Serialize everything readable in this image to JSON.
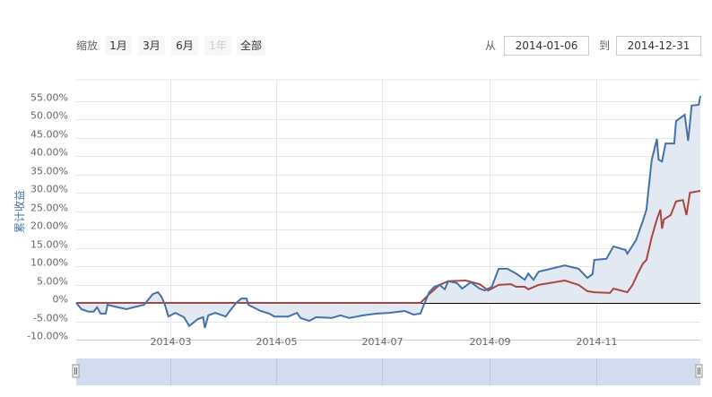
{
  "range_selector": {
    "zoom_label": "缩放",
    "buttons": [
      {
        "label": "1月",
        "disabled": false
      },
      {
        "label": "3月",
        "disabled": false
      },
      {
        "label": "6月",
        "disabled": false
      },
      {
        "label": "1年",
        "disabled": true
      },
      {
        "label": "全部",
        "disabled": false
      }
    ],
    "from_label": "从",
    "from_value": "2014-01-06",
    "to_label": "到",
    "to_value": "2014-12-31"
  },
  "chart_data": {
    "type": "area",
    "ylabel": "累计收益",
    "xlim": [
      "2014-01-06",
      "2014-12-31"
    ],
    "ylim": [
      -10,
      60
    ],
    "y_ticks": [
      -10,
      -5,
      0,
      5,
      10,
      15,
      20,
      25,
      30,
      35,
      40,
      45,
      50,
      55
    ],
    "y_tick_labels": [
      "-10.00%",
      "-5.00%",
      "0%",
      "5.00%",
      "10.00%",
      "15.00%",
      "20.00%",
      "25.00%",
      "30.00%",
      "35.00%",
      "40.00%",
      "45.00%",
      "50.00%",
      "55.00%"
    ],
    "x_ticks": [
      "2014-03-01",
      "2014-05-01",
      "2014-07-01",
      "2014-09-01",
      "2014-11-01"
    ],
    "x_tick_labels": [
      "2014-03",
      "2014-05",
      "2014-07",
      "2014-09",
      "2014-11"
    ],
    "grid": true,
    "legend": "none",
    "colors": {
      "series1": "#4572a7",
      "series2": "#aa4643",
      "area_fill": "#e3e9f2",
      "zero_line": "#000000",
      "navigator": "#d3dcee"
    },
    "series": [
      {
        "values": [
          [
            "2014-01-06",
            0
          ],
          [
            "2014-01-09",
            -1.7
          ],
          [
            "2014-01-13",
            -2.4
          ],
          [
            "2014-01-16",
            -2.4
          ],
          [
            "2014-01-18",
            -1.2
          ],
          [
            "2014-01-20",
            -2.9
          ],
          [
            "2014-01-23",
            -2.9
          ],
          [
            "2014-01-24",
            -0.5
          ],
          [
            "2014-01-30",
            -1.2
          ],
          [
            "2014-02-04",
            -1.7
          ],
          [
            "2014-02-08",
            -1.2
          ],
          [
            "2014-02-14",
            -0.5
          ],
          [
            "2014-02-17",
            1.2
          ],
          [
            "2014-02-19",
            2.4
          ],
          [
            "2014-02-22",
            2.9
          ],
          [
            "2014-02-24",
            1.7
          ],
          [
            "2014-02-26",
            -0.5
          ],
          [
            "2014-02-28",
            -3.7
          ],
          [
            "2014-03-04",
            -2.7
          ],
          [
            "2014-03-09",
            -3.9
          ],
          [
            "2014-03-12",
            -6.3
          ],
          [
            "2014-03-17",
            -4.4
          ],
          [
            "2014-03-20",
            -3.9
          ],
          [
            "2014-03-21",
            -6.8
          ],
          [
            "2014-03-23",
            -3.4
          ],
          [
            "2014-03-27",
            -2.7
          ],
          [
            "2014-04-02",
            -3.7
          ],
          [
            "2014-04-04",
            -2.4
          ],
          [
            "2014-04-08",
            0
          ],
          [
            "2014-04-11",
            1.2
          ],
          [
            "2014-04-14",
            1.2
          ],
          [
            "2014-04-15",
            -0.5
          ],
          [
            "2014-04-22",
            -2.2
          ],
          [
            "2014-04-27",
            -2.9
          ],
          [
            "2014-04-30",
            -3.7
          ],
          [
            "2014-05-08",
            -3.7
          ],
          [
            "2014-05-13",
            -2.7
          ],
          [
            "2014-05-15",
            -4.1
          ],
          [
            "2014-05-20",
            -4.9
          ],
          [
            "2014-05-24",
            -3.9
          ],
          [
            "2014-06-02",
            -4.1
          ],
          [
            "2014-06-07",
            -3.4
          ],
          [
            "2014-06-12",
            -4.1
          ],
          [
            "2014-06-20",
            -3.4
          ],
          [
            "2014-06-28",
            -2.9
          ],
          [
            "2014-07-05",
            -2.7
          ],
          [
            "2014-07-14",
            -2.2
          ],
          [
            "2014-07-19",
            -3.2
          ],
          [
            "2014-07-23",
            -2.9
          ],
          [
            "2014-07-25",
            -0.5
          ],
          [
            "2014-07-28",
            2.9
          ],
          [
            "2014-07-31",
            4.4
          ],
          [
            "2014-08-03",
            4.9
          ],
          [
            "2014-08-06",
            3.7
          ],
          [
            "2014-08-08",
            5.9
          ],
          [
            "2014-08-13",
            5.4
          ],
          [
            "2014-08-16",
            3.9
          ],
          [
            "2014-08-21",
            5.6
          ],
          [
            "2014-08-26",
            3.9
          ],
          [
            "2014-08-29",
            3.4
          ],
          [
            "2014-09-02",
            4.4
          ],
          [
            "2014-09-06",
            9.3
          ],
          [
            "2014-09-11",
            9.3
          ],
          [
            "2014-09-16",
            8.0
          ],
          [
            "2014-09-21",
            6.3
          ],
          [
            "2014-09-23",
            8.0
          ],
          [
            "2014-09-26",
            6.3
          ],
          [
            "2014-09-29",
            8.5
          ],
          [
            "2014-10-14",
            10.2
          ],
          [
            "2014-10-22",
            9.3
          ],
          [
            "2014-10-27",
            6.8
          ],
          [
            "2014-10-30",
            7.8
          ],
          [
            "2014-10-31",
            11.7
          ],
          [
            "2014-11-07",
            12.0
          ],
          [
            "2014-11-11",
            15.4
          ],
          [
            "2014-11-18",
            14.4
          ],
          [
            "2014-11-19",
            13.4
          ],
          [
            "2014-11-24",
            17.1
          ],
          [
            "2014-11-28",
            22.4
          ],
          [
            "2014-11-30",
            25.4
          ],
          [
            "2014-12-03",
            38.8
          ],
          [
            "2014-12-06",
            44.6
          ],
          [
            "2014-12-07",
            39.0
          ],
          [
            "2014-12-09",
            38.5
          ],
          [
            "2014-12-11",
            43.4
          ],
          [
            "2014-12-16",
            43.4
          ],
          [
            "2014-12-17",
            49.5
          ],
          [
            "2014-12-22",
            51.2
          ],
          [
            "2014-12-24",
            44.1
          ],
          [
            "2014-12-26",
            53.7
          ],
          [
            "2014-12-30",
            53.9
          ],
          [
            "2014-12-31",
            56.3
          ]
        ]
      },
      {
        "values": [
          [
            "2014-01-06",
            0
          ],
          [
            "2014-07-23",
            0
          ],
          [
            "2014-07-28",
            2.4
          ],
          [
            "2014-08-03",
            4.9
          ],
          [
            "2014-08-08",
            5.9
          ],
          [
            "2014-08-18",
            6.1
          ],
          [
            "2014-08-26",
            5.1
          ],
          [
            "2014-08-31",
            3.4
          ],
          [
            "2014-09-06",
            4.9
          ],
          [
            "2014-09-13",
            5.1
          ],
          [
            "2014-09-16",
            4.4
          ],
          [
            "2014-09-21",
            4.4
          ],
          [
            "2014-09-23",
            3.7
          ],
          [
            "2014-09-29",
            4.9
          ],
          [
            "2014-10-14",
            6.1
          ],
          [
            "2014-10-22",
            4.9
          ],
          [
            "2014-10-27",
            3.2
          ],
          [
            "2014-10-31",
            2.9
          ],
          [
            "2014-11-09",
            2.7
          ],
          [
            "2014-11-11",
            3.9
          ],
          [
            "2014-11-19",
            2.9
          ],
          [
            "2014-11-22",
            4.9
          ],
          [
            "2014-11-25",
            8.0
          ],
          [
            "2014-11-28",
            10.7
          ],
          [
            "2014-11-30",
            11.7
          ],
          [
            "2014-12-03",
            17.8
          ],
          [
            "2014-12-06",
            22.7
          ],
          [
            "2014-12-08",
            25.4
          ],
          [
            "2014-12-09",
            20.2
          ],
          [
            "2014-12-10",
            22.7
          ],
          [
            "2014-12-14",
            23.9
          ],
          [
            "2014-12-17",
            27.6
          ],
          [
            "2014-12-21",
            28.0
          ],
          [
            "2014-12-23",
            23.9
          ],
          [
            "2014-12-25",
            30.0
          ],
          [
            "2014-12-31",
            30.5
          ]
        ]
      }
    ]
  }
}
